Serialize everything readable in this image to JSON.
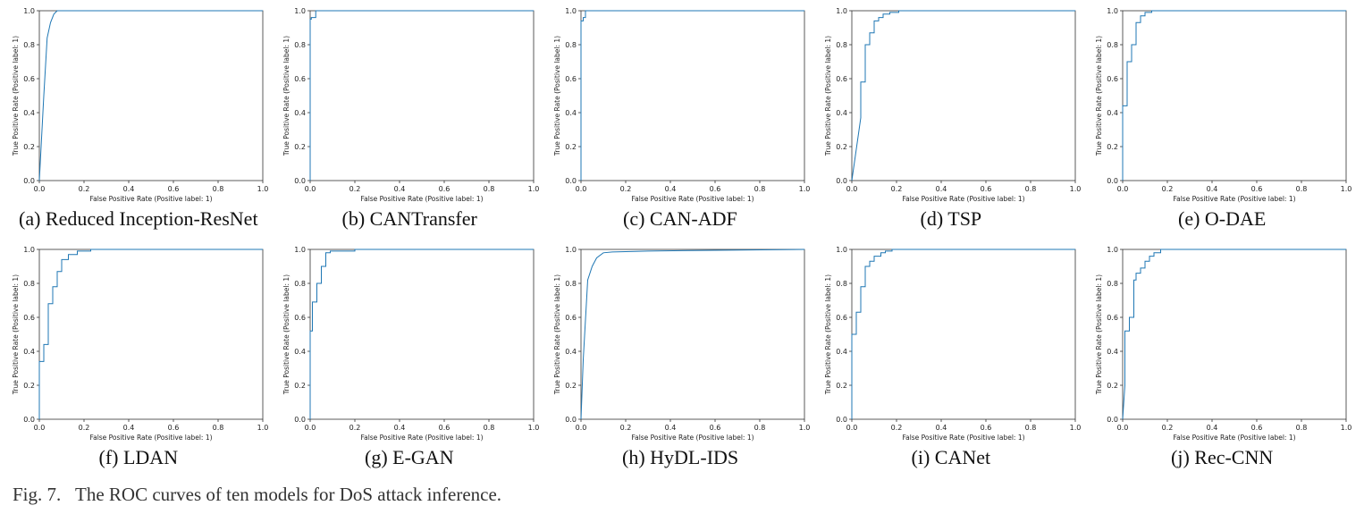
{
  "figure": {
    "caption_number": "Fig. 7.",
    "caption_text": "The ROC curves of ten models for DoS attack inference."
  },
  "chart_data": [
    {
      "type": "line",
      "subcaption": "(a) Reduced Inception-ResNet",
      "xlabel": "False Positive Rate (Positive label: 1)",
      "ylabel": "True Positive Rate (Positive label: 1)",
      "xticks": [
        "0.0",
        "0.2",
        "0.4",
        "0.6",
        "0.8",
        "1.0"
      ],
      "yticks": [
        "0.0",
        "0.2",
        "0.4",
        "0.6",
        "0.8",
        "1.0"
      ],
      "xlim": [
        0,
        1
      ],
      "ylim": [
        0,
        1
      ],
      "grid": false,
      "color": "#1f77b4",
      "x": [
        0,
        0.02,
        0.035,
        0.05,
        0.065,
        0.08,
        0.1,
        1.0
      ],
      "y": [
        0,
        0.5,
        0.84,
        0.93,
        0.98,
        1.0,
        1.0,
        1.0
      ]
    },
    {
      "type": "line",
      "subcaption": "(b) CANTransfer",
      "xlabel": "False Positive Rate (Positive label: 1)",
      "ylabel": "True Positive Rate (Positive label: 1)",
      "xticks": [
        "0.0",
        "0.2",
        "0.4",
        "0.6",
        "0.8",
        "1.0"
      ],
      "yticks": [
        "0.0",
        "0.2",
        "0.4",
        "0.6",
        "0.8",
        "1.0"
      ],
      "xlim": [
        0,
        1
      ],
      "ylim": [
        0,
        1
      ],
      "grid": false,
      "color": "#1f77b4",
      "x": [
        0,
        0,
        0.005,
        0.005,
        0.025,
        0.025,
        0.05,
        1.0
      ],
      "y": [
        0,
        0.95,
        0.95,
        0.96,
        0.96,
        1.0,
        1.0,
        1.0
      ]
    },
    {
      "type": "line",
      "subcaption": "(c) CAN-ADF",
      "xlabel": "False Positive Rate (Positive label: 1)",
      "ylabel": "True Positive Rate (Positive label: 1)",
      "xticks": [
        "0.0",
        "0.2",
        "0.4",
        "0.6",
        "0.8",
        "1.0"
      ],
      "yticks": [
        "0.0",
        "0.2",
        "0.4",
        "0.6",
        "0.8",
        "1.0"
      ],
      "xlim": [
        0,
        1
      ],
      "ylim": [
        0,
        1
      ],
      "grid": false,
      "color": "#1f77b4",
      "x": [
        0,
        0,
        0.01,
        0.01,
        0.02,
        0.02,
        1.0
      ],
      "y": [
        0,
        0.94,
        0.94,
        0.96,
        0.96,
        1.0,
        1.0
      ]
    },
    {
      "type": "line",
      "subcaption": "(d) TSP",
      "xlabel": "False Positive Rate (Positive label: 1)",
      "ylabel": "True Positive Rate (Positive label: 1)",
      "xticks": [
        "0.0",
        "0.2",
        "0.4",
        "0.6",
        "0.8",
        "1.0"
      ],
      "yticks": [
        "0.0",
        "0.2",
        "0.4",
        "0.6",
        "0.8",
        "1.0"
      ],
      "xlim": [
        0,
        1
      ],
      "ylim": [
        0,
        1
      ],
      "grid": false,
      "color": "#1f77b4",
      "x": [
        0,
        0.04,
        0.04,
        0.06,
        0.06,
        0.08,
        0.08,
        0.1,
        0.1,
        0.12,
        0.12,
        0.14,
        0.14,
        0.17,
        0.17,
        0.21,
        0.21,
        1.0
      ],
      "y": [
        0,
        0.37,
        0.58,
        0.58,
        0.8,
        0.8,
        0.87,
        0.87,
        0.94,
        0.94,
        0.96,
        0.96,
        0.98,
        0.98,
        0.99,
        0.99,
        1.0,
        1.0
      ]
    },
    {
      "type": "line",
      "subcaption": "(e) O-DAE",
      "xlabel": "False Positive Rate (Positive label: 1)",
      "ylabel": "True Positive Rate (Positive label: 1)",
      "xticks": [
        "0.0",
        "0.2",
        "0.4",
        "0.6",
        "0.8",
        "1.0"
      ],
      "yticks": [
        "0.0",
        "0.2",
        "0.4",
        "0.6",
        "0.8",
        "1.0"
      ],
      "xlim": [
        0,
        1
      ],
      "ylim": [
        0,
        1
      ],
      "grid": false,
      "color": "#1f77b4",
      "x": [
        0,
        0,
        0.02,
        0.02,
        0.04,
        0.04,
        0.06,
        0.06,
        0.08,
        0.08,
        0.1,
        0.1,
        0.13,
        0.13,
        1.0
      ],
      "y": [
        0,
        0.44,
        0.44,
        0.7,
        0.7,
        0.8,
        0.8,
        0.93,
        0.93,
        0.97,
        0.97,
        0.99,
        0.99,
        1.0,
        1.0
      ]
    },
    {
      "type": "line",
      "subcaption": "(f) LDAN",
      "xlabel": "False Positive Rate (Positive label: 1)",
      "ylabel": "True Positive Rate (Positive label: 1)",
      "xticks": [
        "0.0",
        "0.2",
        "0.4",
        "0.6",
        "0.8",
        "1.0"
      ],
      "yticks": [
        "0.0",
        "0.2",
        "0.4",
        "0.6",
        "0.8",
        "1.0"
      ],
      "xlim": [
        0,
        1
      ],
      "ylim": [
        0,
        1
      ],
      "grid": false,
      "color": "#1f77b4",
      "x": [
        0,
        0,
        0.02,
        0.02,
        0.04,
        0.04,
        0.06,
        0.06,
        0.08,
        0.08,
        0.1,
        0.1,
        0.13,
        0.13,
        0.17,
        0.17,
        0.23,
        0.23,
        1.0
      ],
      "y": [
        0,
        0.34,
        0.34,
        0.44,
        0.44,
        0.68,
        0.68,
        0.78,
        0.78,
        0.87,
        0.87,
        0.94,
        0.94,
        0.97,
        0.97,
        0.99,
        0.99,
        1.0,
        1.0
      ]
    },
    {
      "type": "line",
      "subcaption": "(g) E-GAN",
      "xlabel": "False Positive Rate (Positive label: 1)",
      "ylabel": "True Positive Rate (Positive label: 1)",
      "xticks": [
        "0.0",
        "0.2",
        "0.4",
        "0.6",
        "0.8",
        "1.0"
      ],
      "yticks": [
        "0.0",
        "0.2",
        "0.4",
        "0.6",
        "0.8",
        "1.0"
      ],
      "xlim": [
        0,
        1
      ],
      "ylim": [
        0,
        1
      ],
      "grid": false,
      "color": "#1f77b4",
      "x": [
        0,
        0,
        0.01,
        0.01,
        0.03,
        0.03,
        0.05,
        0.05,
        0.07,
        0.07,
        0.09,
        0.09,
        0.2,
        0.2,
        1.0
      ],
      "y": [
        0,
        0.52,
        0.52,
        0.69,
        0.69,
        0.8,
        0.8,
        0.9,
        0.9,
        0.98,
        0.98,
        0.99,
        0.99,
        1.0,
        1.0
      ]
    },
    {
      "type": "line",
      "subcaption": "(h) HyDL-IDS",
      "xlabel": "False Positive Rate (Positive label: 1)",
      "ylabel": "True Positive Rate (Positive label: 1)",
      "xticks": [
        "0.0",
        "0.2",
        "0.4",
        "0.6",
        "0.8",
        "1.0"
      ],
      "yticks": [
        "0.0",
        "0.2",
        "0.4",
        "0.6",
        "0.8",
        "1.0"
      ],
      "xlim": [
        0,
        1
      ],
      "ylim": [
        0,
        1
      ],
      "grid": false,
      "color": "#1f77b4",
      "x": [
        0,
        0.01,
        0.03,
        0.05,
        0.07,
        0.1,
        0.14,
        0.3,
        0.6,
        1.0
      ],
      "y": [
        0,
        0.35,
        0.82,
        0.9,
        0.95,
        0.98,
        0.985,
        0.99,
        0.995,
        1.0
      ]
    },
    {
      "type": "line",
      "subcaption": "(i) CANet",
      "xlabel": "False Positive Rate (Positive label: 1)",
      "ylabel": "True Positive Rate (Positive label: 1)",
      "xticks": [
        "0.0",
        "0.2",
        "0.4",
        "0.6",
        "0.8",
        "1.0"
      ],
      "yticks": [
        "0.0",
        "0.2",
        "0.4",
        "0.6",
        "0.8",
        "1.0"
      ],
      "xlim": [
        0,
        1
      ],
      "ylim": [
        0,
        1
      ],
      "grid": false,
      "color": "#1f77b4",
      "x": [
        0,
        0,
        0.02,
        0.02,
        0.04,
        0.04,
        0.06,
        0.06,
        0.08,
        0.08,
        0.1,
        0.1,
        0.13,
        0.13,
        0.15,
        0.15,
        0.18,
        0.18,
        1.0
      ],
      "y": [
        0,
        0.5,
        0.5,
        0.63,
        0.63,
        0.78,
        0.78,
        0.9,
        0.9,
        0.93,
        0.93,
        0.96,
        0.96,
        0.98,
        0.98,
        0.99,
        0.99,
        1.0,
        1.0
      ]
    },
    {
      "type": "line",
      "subcaption": "(j) Rec-CNN",
      "xlabel": "False Positive Rate (Positive label: 1)",
      "ylabel": "True Positive Rate (Positive label: 1)",
      "xticks": [
        "0.0",
        "0.2",
        "0.4",
        "0.6",
        "0.8",
        "1.0"
      ],
      "yticks": [
        "0.0",
        "0.2",
        "0.4",
        "0.6",
        "0.8",
        "1.0"
      ],
      "xlim": [
        0,
        1
      ],
      "ylim": [
        0,
        1
      ],
      "grid": false,
      "color": "#1f77b4",
      "x": [
        0,
        0.01,
        0.01,
        0.03,
        0.03,
        0.05,
        0.05,
        0.06,
        0.06,
        0.08,
        0.08,
        0.1,
        0.1,
        0.12,
        0.12,
        0.14,
        0.14,
        0.17,
        0.17,
        1.0
      ],
      "y": [
        0,
        0.2,
        0.52,
        0.52,
        0.6,
        0.6,
        0.82,
        0.82,
        0.86,
        0.86,
        0.89,
        0.89,
        0.93,
        0.93,
        0.96,
        0.96,
        0.98,
        0.98,
        1.0,
        1.0
      ]
    }
  ]
}
